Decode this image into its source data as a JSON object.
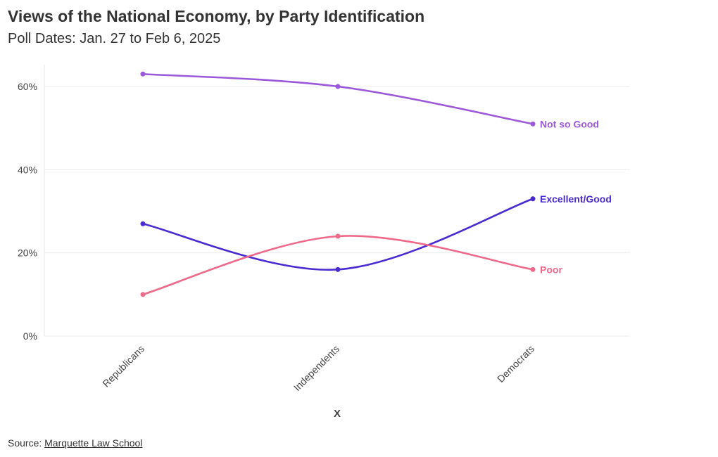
{
  "title": "Views of the National Economy, by Party Identification",
  "subtitle": "Poll Dates: Jan. 27 to Feb 6, 2025",
  "source": {
    "prefix": "Source: ",
    "link_text": "Marquette Law School"
  },
  "colors": {
    "grid": "#ebebeb",
    "axis_text": "#444444"
  },
  "chart_data": {
    "type": "line",
    "categories": [
      "Republicans",
      "Independents",
      "Democrats"
    ],
    "xlabel": "X",
    "ylabel": "",
    "ylim": [
      0,
      60
    ],
    "yticks": [
      {
        "value": 0,
        "label": "0%"
      },
      {
        "value": 20,
        "label": "20%"
      },
      {
        "value": 40,
        "label": "40%"
      },
      {
        "value": 60,
        "label": "60%"
      }
    ],
    "grid": true,
    "legend": "direct labels at line ends",
    "series": [
      {
        "name": "Not so Good",
        "color": "#9b59d9",
        "values": [
          63,
          60,
          51
        ]
      },
      {
        "name": "Excellent/Good",
        "color": "#4a2bd1",
        "values": [
          27,
          16,
          33
        ]
      },
      {
        "name": "Poor",
        "color": "#ef6a8a",
        "values": [
          10,
          24,
          16
        ]
      }
    ]
  }
}
